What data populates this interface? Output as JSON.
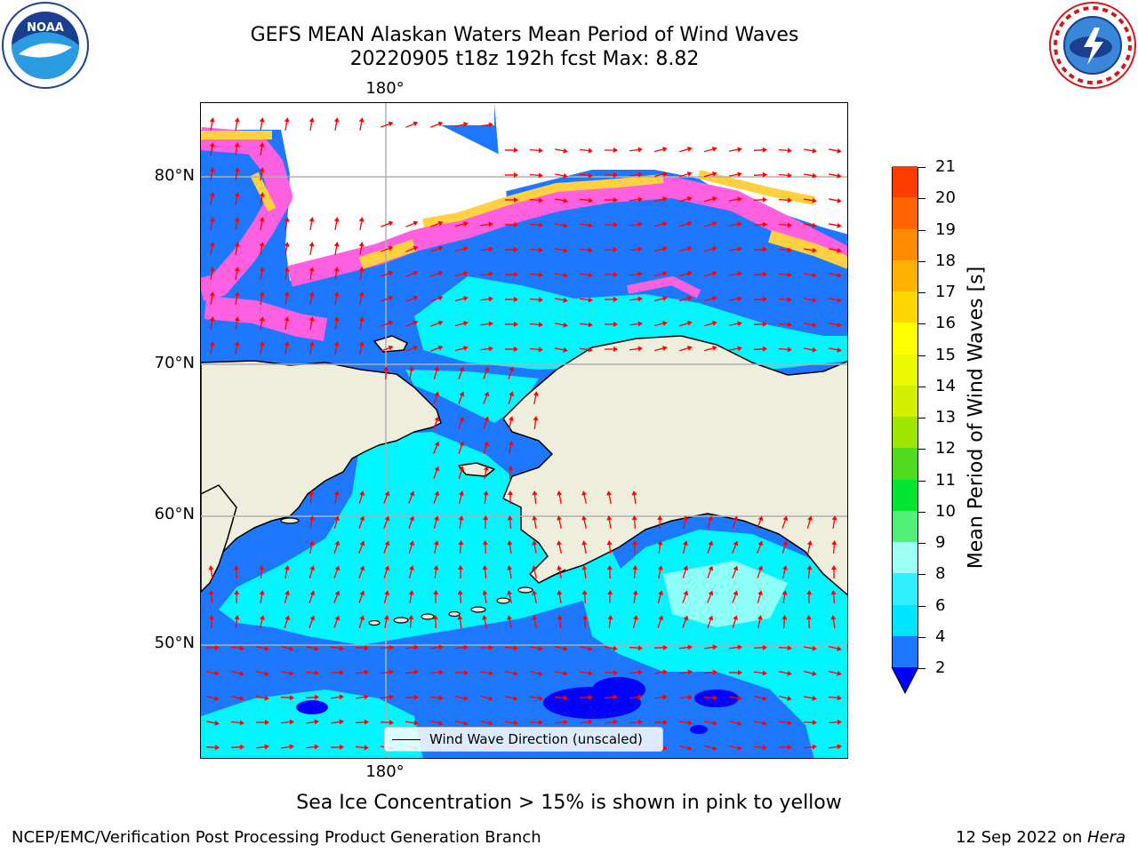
{
  "title": {
    "line1": "GEFS MEAN Alaskan Waters Mean Period of Wind Waves",
    "line2": "20220905 t18z 192h fcst   Max: 8.82"
  },
  "axes": {
    "lon_top": "180°",
    "lon_bottom": "180°",
    "lat_labels": [
      "80°N",
      "70°N",
      "60°N",
      "50°N"
    ]
  },
  "legend": {
    "label": "Wind Wave Direction (unscaled)"
  },
  "colorbar": {
    "label": "Mean Period of Wind Waves [s]",
    "ticks": [
      "2",
      "4",
      "6",
      "8",
      "9",
      "10",
      "11",
      "12",
      "13",
      "14",
      "15",
      "16",
      "17",
      "18",
      "19",
      "20",
      "21"
    ],
    "colors": [
      "#1e78ff",
      "#00e5ff",
      "#30f0ff",
      "#9dfff6",
      "#50f078",
      "#00e632",
      "#50dc1e",
      "#9ee600",
      "#d2f000",
      "#ebfa00",
      "#ffff00",
      "#ffd700",
      "#ffb000",
      "#ff8c00",
      "#ff6400",
      "#ff3c00",
      "#ff0000"
    ],
    "under_color": "#0000ff"
  },
  "colors": {
    "land": "#efeddc",
    "ocean_dark": "#1e78ff",
    "ocean_light": "#00f5ff",
    "ice_pink": "#ff60e0",
    "ice_yellow": "#ffd040",
    "arrow": "#ff0000",
    "grid": "#b0b0b0"
  },
  "icons": {
    "left_logo": "noaa-logo",
    "right_logo": "nws-logo"
  },
  "notes": {
    "sea_ice": "Sea Ice Concentration > 15% is shown in pink to yellow"
  },
  "footer": {
    "left": "NCEP/EMC/Verification Post Processing Product Generation Branch",
    "right_date": "12 Sep 2022 on ",
    "right_system": "Hera"
  }
}
